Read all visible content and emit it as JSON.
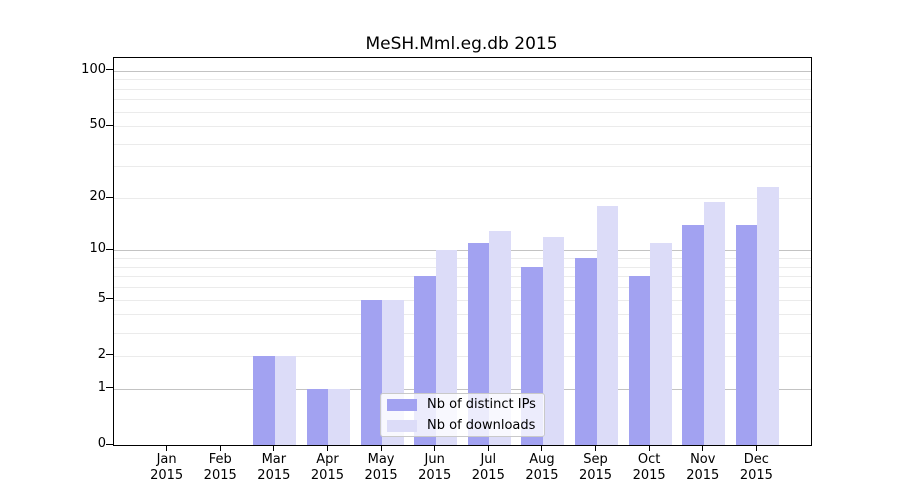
{
  "title": "MeSH.Mml.eg.db 2015",
  "chart_data": {
    "type": "bar",
    "title": "MeSH.Mml.eg.db 2015",
    "xlabel": "",
    "ylabel": "",
    "categories": [
      "Jan 2015",
      "Feb 2015",
      "Mar 2015",
      "Apr 2015",
      "May 2015",
      "Jun 2015",
      "Jul 2015",
      "Aug 2015",
      "Sep 2015",
      "Oct 2015",
      "Nov 2015",
      "Dec 2015"
    ],
    "series": [
      {
        "name": "Nb of distinct IPs",
        "color": "#a2a2f1",
        "values": [
          0,
          0,
          2,
          1,
          5,
          7,
          11,
          8,
          9,
          7,
          14,
          14
        ]
      },
      {
        "name": "Nb of downloads",
        "color": "#dcdcf8",
        "values": [
          0,
          0,
          2,
          1,
          5,
          10,
          13,
          12,
          18,
          11,
          19,
          23
        ]
      }
    ],
    "yscale": "log10(1+x)",
    "ylim": [
      0,
      117
    ],
    "yticks": [
      0,
      1,
      2,
      5,
      10,
      20,
      50,
      100
    ],
    "grid": {
      "major": [
        1,
        10,
        100
      ],
      "minor": [
        2,
        3,
        4,
        5,
        6,
        7,
        8,
        9,
        20,
        30,
        40,
        50,
        60,
        70,
        80,
        90
      ],
      "major_color": "#c3c3c3",
      "minor_color": "#ebebeb"
    },
    "legend_position": "lower center",
    "bar_group": "paired: distinct-IPs bar left of month tick, downloads bar right of month tick",
    "axis_color": "#000000",
    "background": "#ffffff"
  }
}
